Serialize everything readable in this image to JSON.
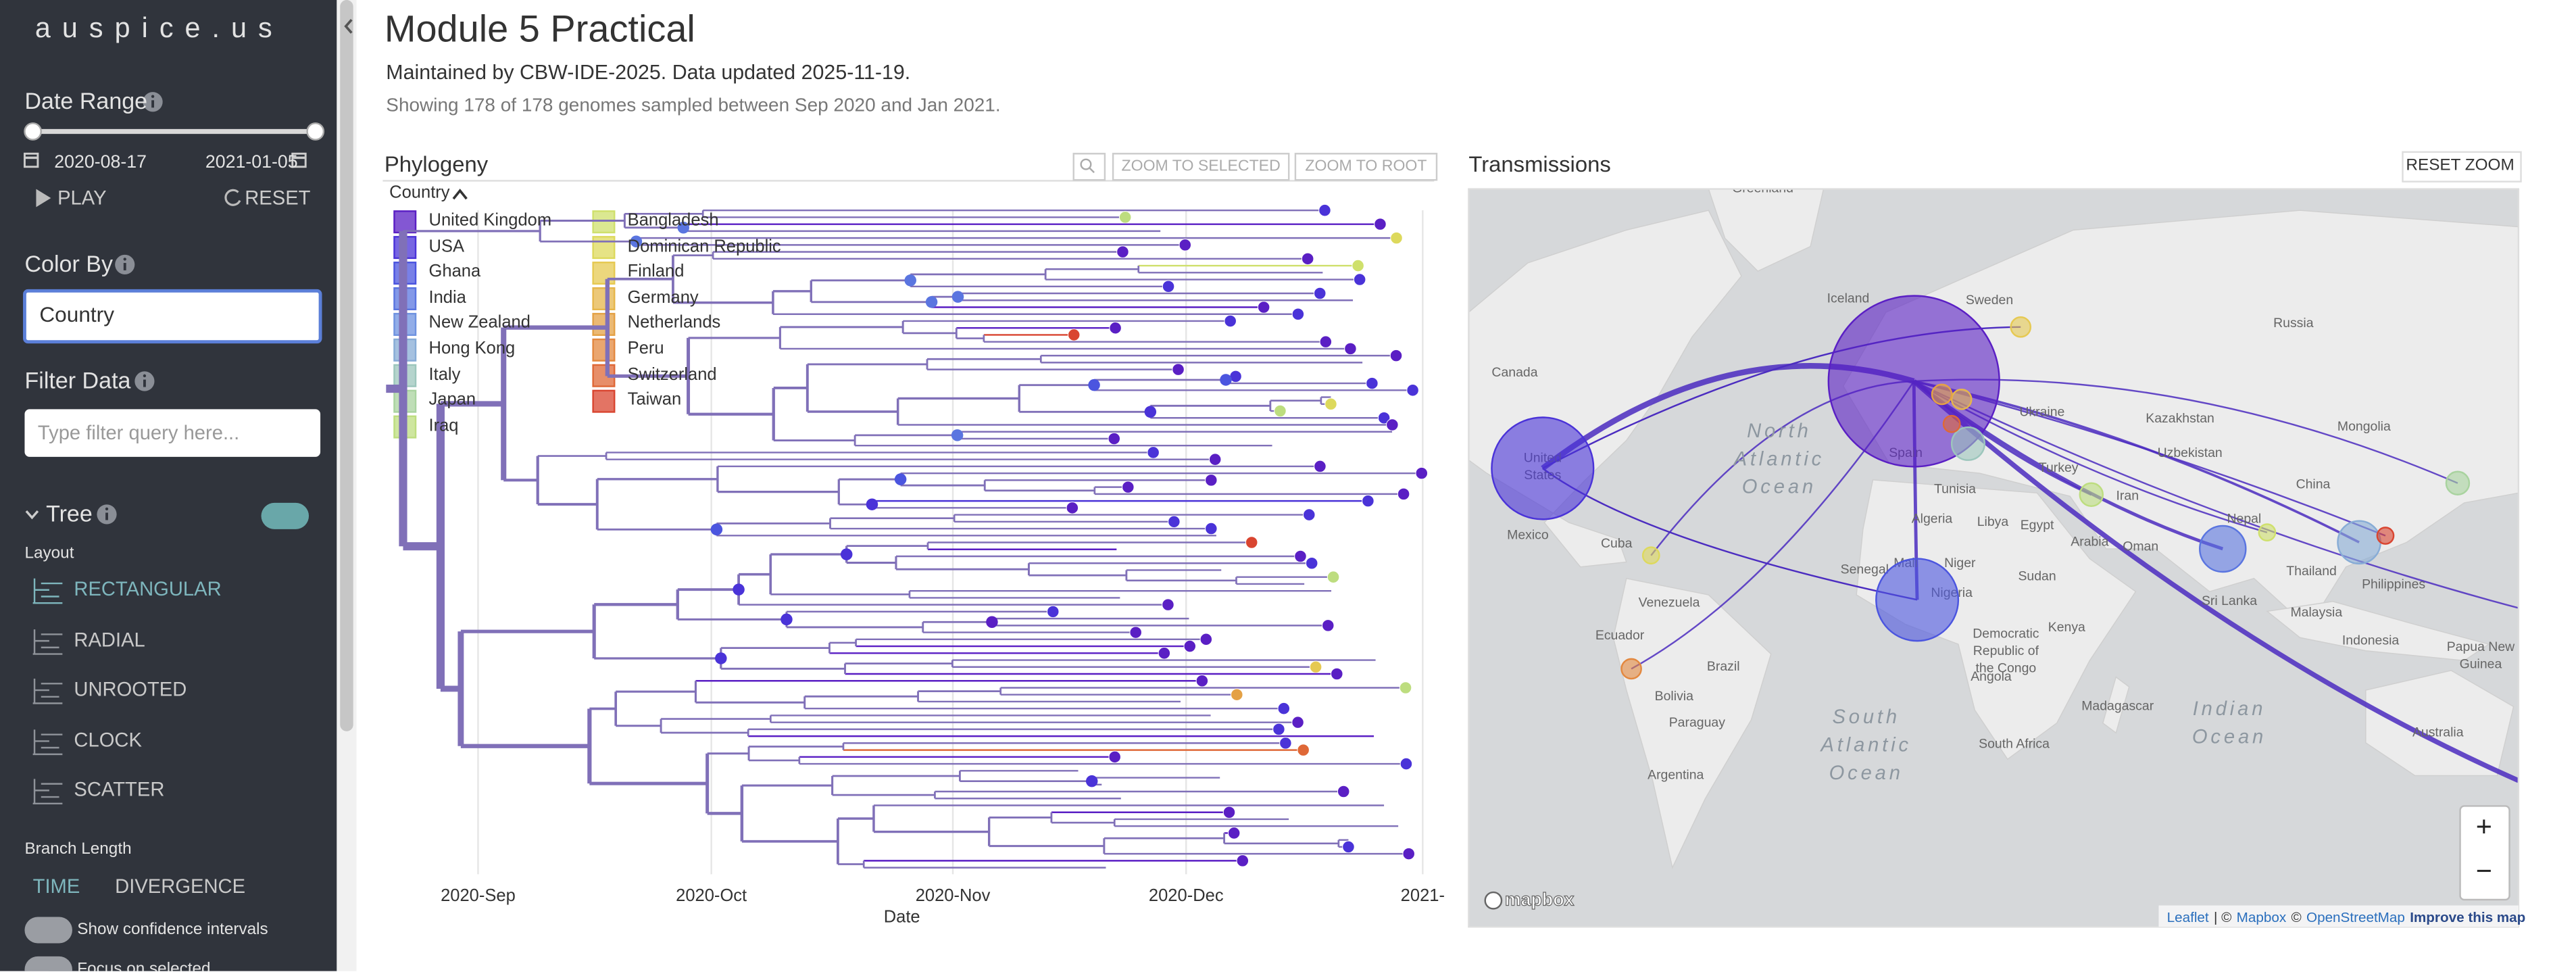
{
  "sidebar": {
    "logo": "auspice.us",
    "date_range": {
      "title": "Date Range",
      "start": "2020-08-17",
      "end": "2021-01-05",
      "play": "PLAY",
      "reset": "RESET"
    },
    "color_by": {
      "title": "Color By",
      "selected": "Country"
    },
    "filter": {
      "title": "Filter Data",
      "placeholder": "Type filter query here..."
    },
    "tree": {
      "title": "Tree",
      "layout_label": "Layout",
      "layouts": [
        "RECTANGULAR",
        "RADIAL",
        "UNROOTED",
        "CLOCK",
        "SCATTER"
      ],
      "branch_length_label": "Branch Length",
      "branch_lengths": [
        "TIME",
        "DIVERGENCE"
      ],
      "toggles": [
        "Show confidence intervals",
        "Focus on selected"
      ]
    }
  },
  "header": {
    "title": "Module 5 Practical",
    "maintainers": "Maintained by CBW-IDE-2025. Data updated 2025-11-19.",
    "summary": "Showing 178 of 178 genomes sampled between Sep 2020 and Jan 2021."
  },
  "phylogeny": {
    "title": "Phylogeny",
    "buttons": [
      "ZOOM TO SELECTED",
      "ZOOM TO ROOT"
    ],
    "legend_title": "Country",
    "legend": [
      {
        "name": "United Kingdom",
        "color": "#5a1fc4"
      },
      {
        "name": "USA",
        "color": "#4a33d8"
      },
      {
        "name": "Ghana",
        "color": "#4b55df"
      },
      {
        "name": "India",
        "color": "#5a75e0"
      },
      {
        "name": "New Zealand",
        "color": "#6e92e0"
      },
      {
        "name": "Hong Kong",
        "color": "#87acd6"
      },
      {
        "name": "Italy",
        "color": "#9cc6bc"
      },
      {
        "name": "Japan",
        "color": "#a9d39f"
      },
      {
        "name": "Iraq",
        "color": "#bddd7f"
      },
      {
        "name": "Bangladesh",
        "color": "#cfe06c"
      },
      {
        "name": "Dominican Republic",
        "color": "#ddd95c"
      },
      {
        "name": "Finland",
        "color": "#e6c952"
      },
      {
        "name": "Germany",
        "color": "#e6b64b"
      },
      {
        "name": "Netherlands",
        "color": "#e4a145"
      },
      {
        "name": "Peru",
        "color": "#e3883f"
      },
      {
        "name": "Switzerland",
        "color": "#df6837"
      },
      {
        "name": "Taiwan",
        "color": "#d94530"
      }
    ],
    "x_ticks": [
      "2020-Sep",
      "2020-Oct",
      "2020-Nov",
      "2020-Dec",
      "2021-"
    ],
    "x_label": "Date"
  },
  "transmissions": {
    "title": "Transmissions",
    "reset": "RESET ZOOM",
    "map_labels": [
      [
        "Greenland"
      ],
      [
        "Iceland"
      ],
      [
        "Sweden"
      ],
      [
        "Russia"
      ],
      [
        "Canada"
      ],
      [
        "North",
        "Atlantic",
        "Ocean"
      ],
      [
        "Kazakhstan"
      ],
      [
        "Mongolia"
      ],
      [
        "Ukraine"
      ],
      [
        "Uzbekistan"
      ],
      [
        "Turkey"
      ],
      [
        "China"
      ],
      [
        "Iran"
      ],
      [
        "Mexico"
      ],
      [
        "Cuba"
      ],
      [
        "Tunisia"
      ],
      [
        "Algeria"
      ],
      [
        "Libya"
      ],
      [
        "Egypt"
      ],
      [
        "Oman"
      ],
      [
        "Nepal"
      ],
      [
        "Senegal"
      ],
      [
        "Mali"
      ],
      [
        "Niger"
      ],
      [
        "Sudan"
      ],
      [
        "Nigeria"
      ],
      [
        "Venezuela"
      ],
      [
        "Philippines"
      ],
      [
        "Sri Lanka"
      ],
      [
        "Kenya"
      ],
      [
        "Thailand"
      ],
      [
        "Ecuador"
      ],
      [
        "Democratic",
        "Republic of",
        "the Congo"
      ],
      [
        "Malaysia"
      ],
      [
        "Indonesia"
      ],
      [
        "Papua New",
        "Guinea"
      ],
      [
        "Brazil"
      ],
      [
        "Angola"
      ],
      [
        "Bolivia"
      ],
      [
        "Madagascar"
      ],
      [
        "South",
        "Atlantic",
        "Ocean"
      ],
      [
        "Indian",
        "Ocean"
      ],
      [
        "Paraguay"
      ],
      [
        "Australia"
      ],
      [
        "South Africa"
      ],
      [
        "Argentina"
      ],
      [
        "United",
        "States"
      ],
      [
        "Spain"
      ],
      [
        "Arabia"
      ]
    ],
    "zoom_in": "+",
    "zoom_out": "−",
    "logo": "mapbox",
    "attribution": [
      "Leaflet",
      "| ©",
      "Mapbox",
      "©",
      "OpenStreetMap",
      "Improve this map"
    ]
  }
}
